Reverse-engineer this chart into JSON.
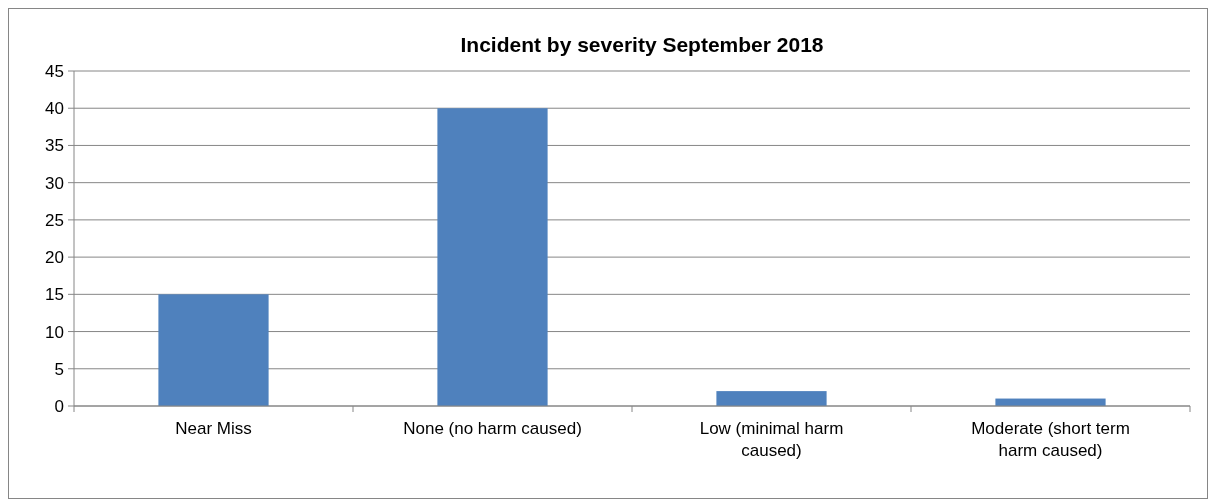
{
  "chart_data": {
    "type": "bar",
    "title": "Incident by severity September 2018",
    "categories": [
      "Near Miss",
      "None (no harm caused)",
      "Low (minimal harm caused)",
      "Moderate (short term harm caused)"
    ],
    "values": [
      15,
      40,
      2,
      1
    ],
    "color": "#4f81bd",
    "ylim": [
      0,
      45
    ],
    "yticks": [
      0,
      5,
      10,
      15,
      20,
      25,
      30,
      35,
      40,
      45
    ],
    "grid": "y"
  }
}
